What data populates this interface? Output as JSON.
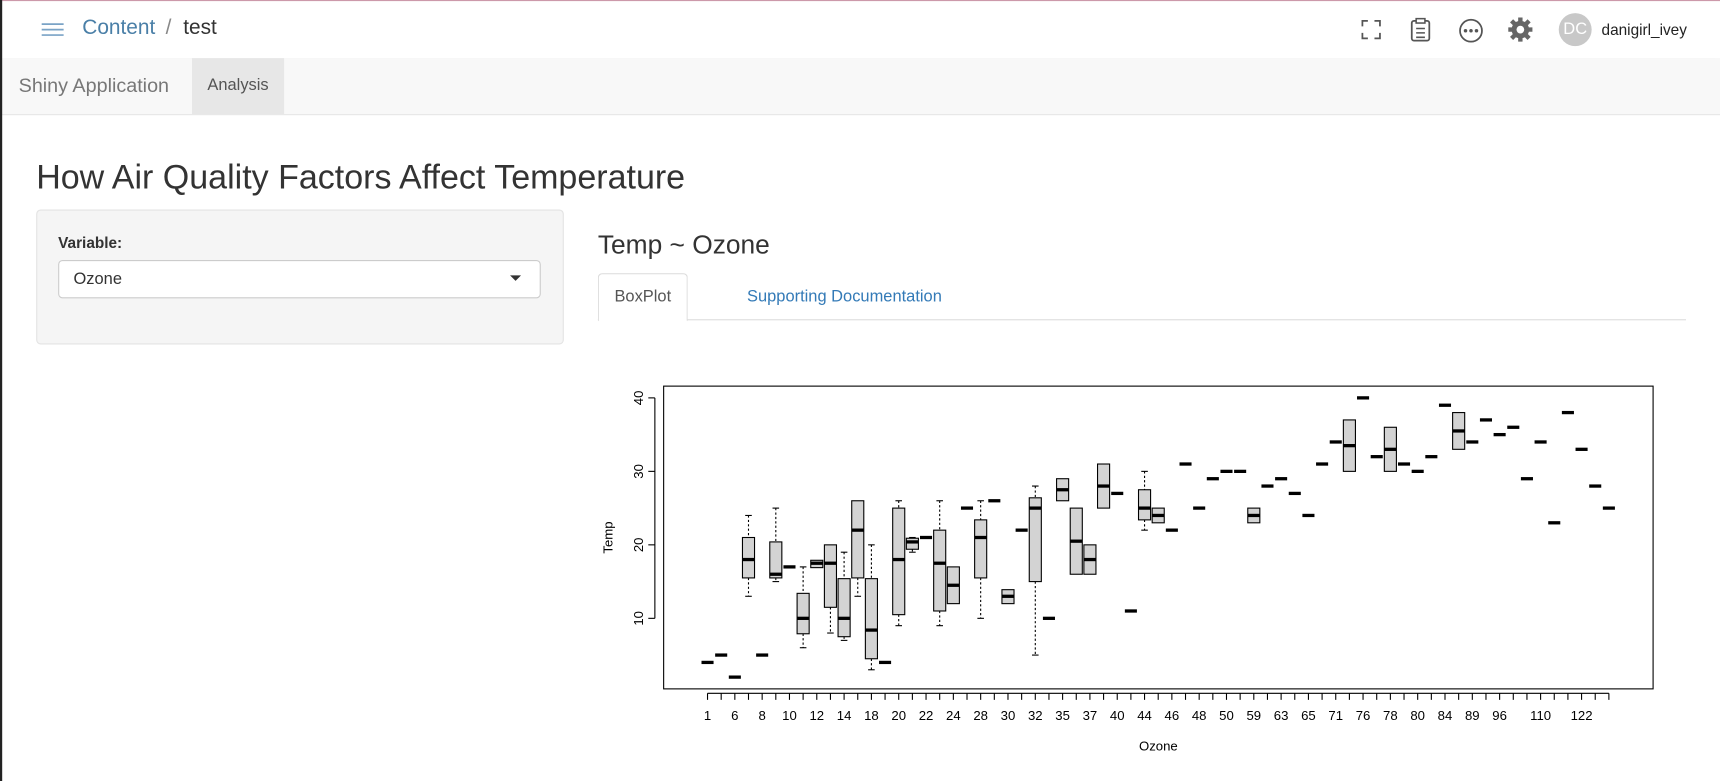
{
  "header": {
    "breadcrumb": [
      "Content",
      "test"
    ],
    "avatar": "DC",
    "user": "danigirl_ivey"
  },
  "navbar": {
    "brand": "Shiny Application",
    "tabs": [
      "Analysis"
    ]
  },
  "page": {
    "title": "How Air Quality Factors Affect Temperature",
    "sidebar": {
      "label": "Variable:",
      "selected": "Ozone"
    },
    "main": {
      "heading": "Temp ~ Ozone",
      "tabs": [
        "BoxPlot",
        "Supporting Documentation"
      ]
    }
  },
  "chart_data": {
    "type": "box",
    "x_label": "Ozone",
    "y_label": "Temp",
    "box_color": "#d3d3d3",
    "categories": [
      "1",
      null,
      "6",
      null,
      "8",
      null,
      "10",
      null,
      "12",
      null,
      "14",
      null,
      "18",
      null,
      "20",
      null,
      "22",
      null,
      "24",
      null,
      "28",
      null,
      "30",
      null,
      "32",
      null,
      "35",
      null,
      "37",
      null,
      "40",
      null,
      "44",
      null,
      "46",
      null,
      "48",
      null,
      "50",
      null,
      "59",
      null,
      "63",
      null,
      "65",
      null,
      "71",
      null,
      "76",
      null,
      "78",
      null,
      "80",
      null,
      "84",
      null,
      "89",
      null,
      "96",
      null,
      null,
      "110",
      null,
      null,
      "122",
      null,
      null
    ],
    "boxes": [
      {
        "median": 4
      },
      {
        "median": 5
      },
      {
        "median": 2
      },
      {
        "min": 13,
        "q1": 15.5,
        "median": 18,
        "q3": 21,
        "max": 24
      },
      {
        "median": 5
      },
      {
        "min": 15,
        "q1": 15.5,
        "median": 16,
        "q3": 20.4,
        "max": 25
      },
      {
        "median": 17
      },
      {
        "min": 6,
        "q1": 7.9,
        "median": 10,
        "q3": 13.4,
        "max": 17
      },
      {
        "q1": 16.9,
        "median": 17.5,
        "q3": 17.9
      },
      {
        "min": 8,
        "q1": 11.5,
        "median": 17.5,
        "q3": 20
      },
      {
        "min": 7,
        "q1": 7.5,
        "median": 10,
        "q3": 15.4,
        "max": 19
      },
      {
        "min": 13,
        "q1": 15.5,
        "median": 22,
        "q3": 26
      },
      {
        "min": 3,
        "q1": 4.5,
        "median": 8.4,
        "q3": 15.4,
        "max": 20
      },
      {
        "median": 4
      },
      {
        "min": 9,
        "q1": 10.5,
        "median": 18,
        "q3": 25,
        "max": 26
      },
      {
        "min": 19,
        "q1": 19.4,
        "median": 20.4,
        "q3": 20.9,
        "max": 21
      },
      {
        "median": 21
      },
      {
        "min": 9,
        "q1": 11,
        "median": 17.5,
        "q3": 22,
        "max": 26
      },
      {
        "q1": 12,
        "median": 14.5,
        "q3": 17
      },
      {
        "median": 25
      },
      {
        "min": 10,
        "q1": 15.5,
        "median": 21,
        "q3": 23.4,
        "max": 26
      },
      {
        "median": 26
      },
      {
        "q1": 12,
        "median": 13,
        "q3": 13.9
      },
      {
        "median": 22
      },
      {
        "min": 5,
        "q1": 15,
        "median": 25,
        "q3": 26.4,
        "max": 28
      },
      {
        "median": 10
      },
      {
        "q1": 26,
        "median": 27.5,
        "q3": 29
      },
      {
        "q1": 16,
        "median": 20.5,
        "q3": 25
      },
      {
        "q1": 16,
        "median": 18,
        "q3": 20
      },
      {
        "q1": 25,
        "median": 28,
        "q3": 31
      },
      {
        "median": 27
      },
      {
        "median": 11
      },
      {
        "min": 22,
        "q1": 23.4,
        "median": 25,
        "q3": 27.5,
        "max": 30
      },
      {
        "q1": 23,
        "median": 24,
        "q3": 25
      },
      {
        "median": 22
      },
      {
        "median": 31
      },
      {
        "median": 25
      },
      {
        "median": 29
      },
      {
        "median": 30
      },
      {
        "median": 30
      },
      {
        "q1": 23,
        "median": 24,
        "q3": 25
      },
      {
        "median": 28
      },
      {
        "median": 29
      },
      {
        "median": 27
      },
      {
        "median": 24
      },
      {
        "median": 31
      },
      {
        "median": 34
      },
      {
        "q1": 30,
        "median": 33.5,
        "q3": 37
      },
      {
        "median": 40
      },
      {
        "median": 32
      },
      {
        "q1": 30,
        "median": 33,
        "q3": 36
      },
      {
        "median": 31
      },
      {
        "median": 30
      },
      {
        "median": 32
      },
      {
        "median": 39
      },
      {
        "q1": 33,
        "median": 35.5,
        "q3": 38
      },
      {
        "median": 34
      },
      {
        "median": 37
      },
      {
        "median": 35
      },
      {
        "median": 36
      },
      {
        "median": 29
      },
      {
        "median": 34
      },
      {
        "median": 23
      },
      {
        "median": 38
      },
      {
        "median": 33
      },
      {
        "median": 28
      },
      {
        "median": 25
      }
    ],
    "ylim": [
      0.4,
      41.6
    ],
    "yticks": [
      10,
      20,
      30,
      40
    ]
  }
}
